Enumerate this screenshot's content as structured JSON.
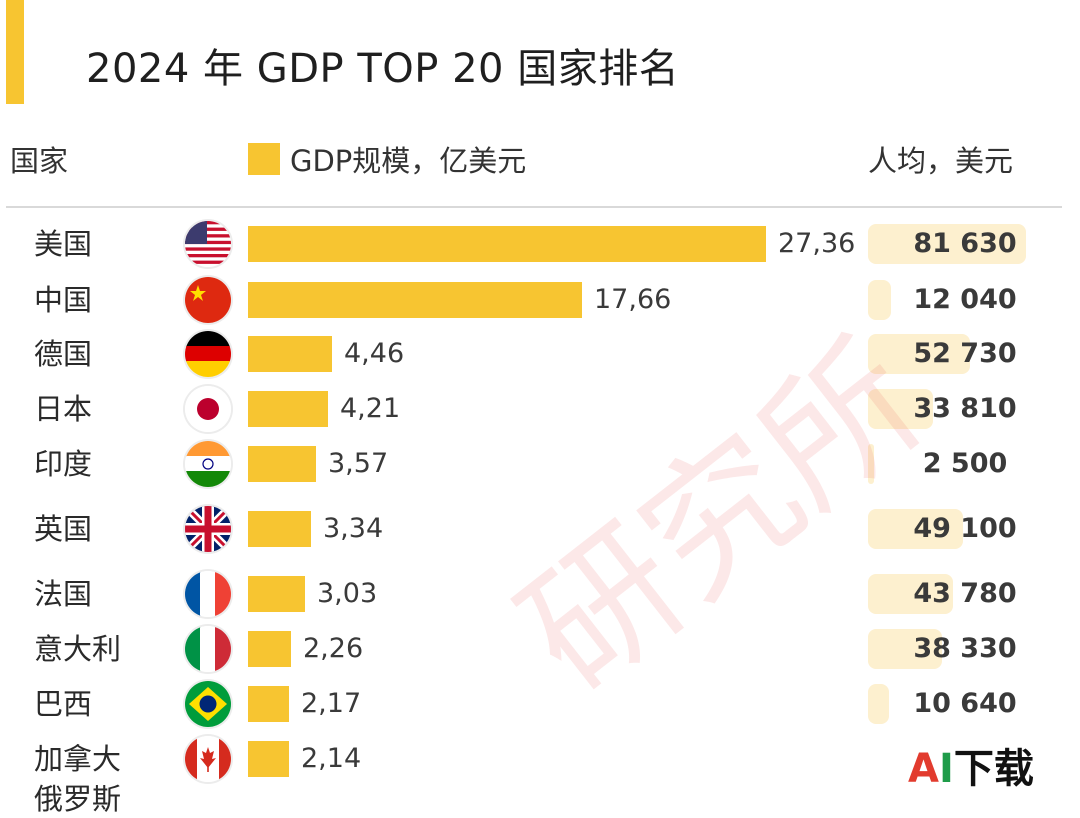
{
  "title": "2024 年 GDP TOP 20 国家排名",
  "header": {
    "country": "国家",
    "gdp": "GDP规模，亿美元",
    "per_capita": "人均，美元"
  },
  "colors": {
    "bar": "#f7c531",
    "per_capita_bg": "#fdf0cf",
    "accent": "#f7c531"
  },
  "chart_data": {
    "type": "bar",
    "orientation": "horizontal",
    "title": "2024 年 GDP TOP 20 国家排名",
    "legend": "GDP规模，亿美元",
    "categories": [
      "美国",
      "中国",
      "德国",
      "日本",
      "印度",
      "英国",
      "法国",
      "意大利",
      "巴西",
      "加拿大"
    ],
    "series": [
      {
        "name": "GDP规模，亿美元",
        "values": [
          27.36,
          17.66,
          4.46,
          4.21,
          3.57,
          3.34,
          3.03,
          2.26,
          2.17,
          2.14
        ],
        "labels": [
          "27,36",
          "17,66",
          "4,46",
          "4,21",
          "3,57",
          "3,34",
          "3,03",
          "2,26",
          "2,17",
          "2,14"
        ]
      },
      {
        "name": "人均，美元",
        "values": [
          81630,
          12040,
          52730,
          33810,
          2500,
          49100,
          43780,
          38330,
          10640,
          0
        ],
        "labels": [
          "81 630",
          "12 040",
          "52 730",
          "33 810",
          "2 500",
          "49 100",
          "43 780",
          "38 330",
          "10 640",
          ""
        ]
      }
    ],
    "flags": [
      "us-flag-icon",
      "cn-flag-icon",
      "de-flag-icon",
      "jp-flag-icon",
      "in-flag-icon",
      "gb-flag-icon",
      "fr-flag-icon",
      "it-flag-icon",
      "br-flag-icon",
      "ca-flag-icon"
    ],
    "partial_next_category": "俄罗斯"
  },
  "watermark": "研究所",
  "site_logo": {
    "a": "A",
    "i": "I",
    "rest": "下载"
  }
}
